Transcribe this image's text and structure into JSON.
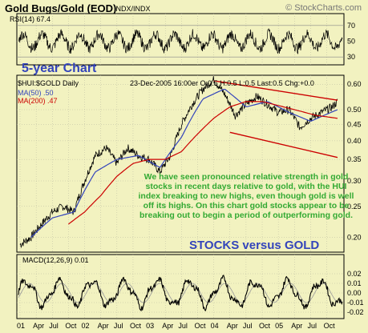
{
  "header": {
    "title": "Gold Bugs/Gold (EOD)",
    "subtitle": "INDX/INDX",
    "credit": "© StockCharts.com"
  },
  "rsi": {
    "label": "RSI(14) 67.4",
    "ticks": [
      "70",
      "50",
      "30"
    ],
    "levels": [
      70,
      50,
      30
    ]
  },
  "price": {
    "chart_title": "5-year Chart",
    "symbol_line": "$HUI:$GOLD Daily",
    "quote_line": "23-Dec-2005 16:00er O:0.5 H:0.5 L:0.5 Last:0.5 Chg:+0.0",
    "ma50_label": "MA(50) .50",
    "ma200_label": "MA(200) .47",
    "y_ticks": [
      "0.60",
      "0.50",
      "0.45",
      "0.40",
      "0.35",
      "0.30",
      "0.25",
      "0.20"
    ],
    "annotation": "We have seen pronounced relative strength in gold stocks in recent days relative to gold, with the HUI index breaking to new highs, even though gold is well off its highs. On this chart gold stocks appear to be breaking out to begin a period of outperforming gold.",
    "big_label": "STOCKS versus GOLD"
  },
  "macd": {
    "label": "MACD(12,26,9) 0.01",
    "y_ticks": [
      "0.02",
      "0.01",
      "0.00",
      "-0.01",
      "-0.02"
    ]
  },
  "x_axis": {
    "labels": [
      "01",
      "Apr",
      "Jul",
      "Oct",
      "02",
      "Apr",
      "Jul",
      "Oct",
      "03",
      "Apr",
      "Jul",
      "Oct",
      "04",
      "Apr",
      "Jul",
      "Oct",
      "05",
      "Apr",
      "Jul",
      "Oct"
    ]
  },
  "colors": {
    "background": "#f2f2c0",
    "price_line": "#000000",
    "ma50": "#3344bb",
    "ma200": "#cc0000",
    "channel": "#cc0000",
    "annotation": "#33aa33"
  },
  "chart_data": {
    "type": "line",
    "title": "Gold Bugs/Gold (EOD)",
    "x_range": [
      "2001-01",
      "2005-12"
    ],
    "ylim": [
      0.18,
      0.64
    ],
    "scale": "log",
    "series": [
      {
        "name": "$HUI:$GOLD",
        "x": [
          "2001-01",
          "2001-03",
          "2001-05",
          "2001-07",
          "2001-09",
          "2001-11",
          "2002-01",
          "2002-03",
          "2002-05",
          "2002-07",
          "2002-09",
          "2002-11",
          "2003-01",
          "2003-03",
          "2003-05",
          "2003-07",
          "2003-09",
          "2003-11",
          "2004-01",
          "2004-03",
          "2004-05",
          "2004-07",
          "2004-09",
          "2004-11",
          "2005-01",
          "2005-03",
          "2005-05",
          "2005-07",
          "2005-09",
          "2005-11",
          "2005-12"
        ],
        "values": [
          0.19,
          0.2,
          0.22,
          0.24,
          0.25,
          0.24,
          0.3,
          0.36,
          0.38,
          0.34,
          0.38,
          0.36,
          0.35,
          0.32,
          0.36,
          0.45,
          0.52,
          0.58,
          0.62,
          0.56,
          0.48,
          0.52,
          0.55,
          0.52,
          0.49,
          0.5,
          0.44,
          0.47,
          0.49,
          0.51,
          0.53
        ]
      },
      {
        "name": "MA(50)",
        "x": [
          "2001-03",
          "2001-07",
          "2001-11",
          "2002-03",
          "2002-07",
          "2002-11",
          "2003-03",
          "2003-07",
          "2003-11",
          "2004-03",
          "2004-07",
          "2004-11",
          "2005-03",
          "2005-07",
          "2005-12"
        ],
        "values": [
          0.2,
          0.23,
          0.24,
          0.32,
          0.35,
          0.36,
          0.33,
          0.41,
          0.54,
          0.58,
          0.51,
          0.53,
          0.49,
          0.46,
          0.5
        ]
      },
      {
        "name": "MA(200)",
        "x": [
          "2001-10",
          "2002-01",
          "2002-04",
          "2002-07",
          "2002-10",
          "2003-01",
          "2003-04",
          "2003-07",
          "2003-10",
          "2004-01",
          "2004-04",
          "2004-07",
          "2004-10",
          "2004-12",
          "2005-04",
          "2005-08",
          "2005-12"
        ],
        "values": [
          0.22,
          0.24,
          0.27,
          0.31,
          0.34,
          0.35,
          0.35,
          0.37,
          0.42,
          0.47,
          0.51,
          0.53,
          0.53,
          0.52,
          0.5,
          0.48,
          0.47
        ]
      }
    ]
  }
}
